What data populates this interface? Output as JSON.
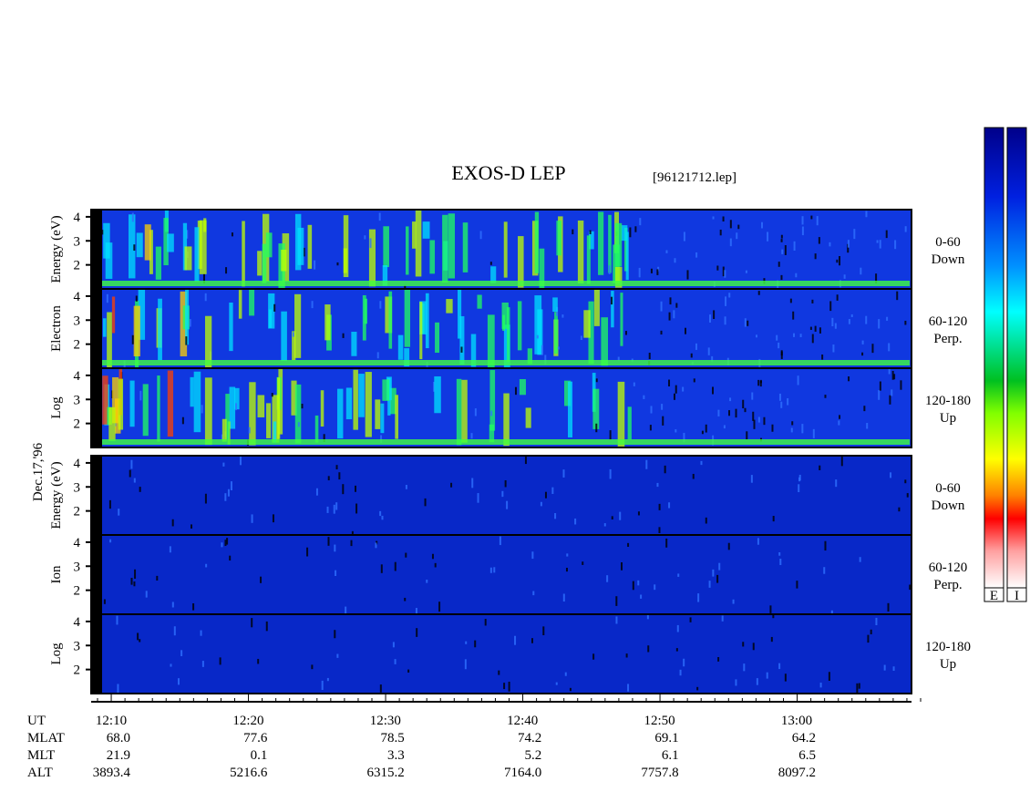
{
  "chart_data": {
    "type": "spectrogram",
    "title": "EXOS-D LEP",
    "file": "[96121712.lep]",
    "date": "Dec.17,'96",
    "ylim": [
      1,
      4.3
    ],
    "yticks": [
      2,
      3,
      4
    ],
    "groups": [
      {
        "ylabel": [
          "Log",
          "Electron",
          "Energy (eV)"
        ],
        "panels": [
          [
            "0-60",
            "Down"
          ],
          [
            "60-120",
            "Perp."
          ],
          [
            "120-180",
            "Up"
          ]
        ]
      },
      {
        "ylabel": [
          "Log",
          "Ion",
          "Energy (eV)"
        ],
        "panels": [
          [
            "0-60",
            "Down"
          ],
          [
            "60-120",
            "Perp."
          ],
          [
            "120-180",
            "Up"
          ]
        ]
      }
    ],
    "colorbars": [
      "E",
      "I"
    ],
    "ephemeris": [
      {
        "name": "UT",
        "values": [
          "12:10",
          "12:20",
          "12:30",
          "12:40",
          "12:50",
          "13:00"
        ]
      },
      {
        "name": "MLAT",
        "values": [
          "68.0",
          "77.6",
          "78.5",
          "74.2",
          "69.1",
          "64.2"
        ]
      },
      {
        "name": "MLT",
        "values": [
          "21.9",
          "0.1",
          "3.3",
          "5.2",
          "6.1",
          "6.5"
        ]
      },
      {
        "name": "ALT",
        "values": [
          "3893.4",
          "5216.6",
          "6315.2",
          "7164.0",
          "7757.8",
          "8097.2"
        ]
      }
    ]
  }
}
